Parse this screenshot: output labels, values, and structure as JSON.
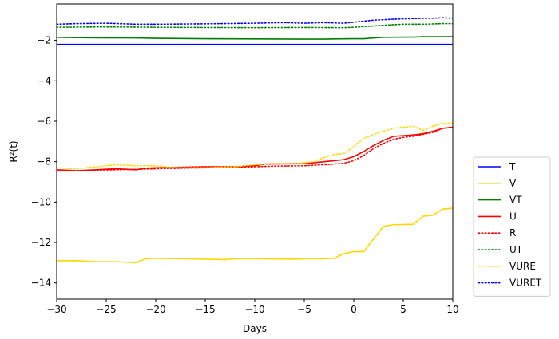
{
  "chart_data": {
    "type": "line",
    "xlabel": "Days",
    "ylabel": "R²(t)",
    "xlim": [
      -30,
      10
    ],
    "ylim": [
      -14.8,
      -0.2
    ],
    "x_ticks": [
      -30,
      -25,
      -20,
      -15,
      -10,
      -5,
      0,
      5,
      10
    ],
    "y_ticks": [
      -14,
      -12,
      -10,
      -8,
      -6,
      -4,
      -2
    ],
    "grid": false,
    "legend_position": "outside-right",
    "series": [
      {
        "name": "T",
        "color": "#0000ff",
        "style": "solid",
        "x": [
          -30,
          10
        ],
        "y": [
          -2.2,
          -2.2
        ]
      },
      {
        "name": "V",
        "color": "#ffd700",
        "style": "solid",
        "x": [
          -30,
          -28,
          -26,
          -24,
          -22,
          -21,
          -20,
          -17,
          -15,
          -13,
          -12,
          -10,
          -6,
          -5,
          -4,
          -3,
          -2,
          -1,
          0,
          1,
          3,
          4,
          6,
          7,
          8,
          9,
          10
        ],
        "y": [
          -12.9,
          -12.9,
          -12.95,
          -12.95,
          -13.0,
          -12.8,
          -12.78,
          -12.8,
          -12.82,
          -12.85,
          -12.8,
          -12.8,
          -12.82,
          -12.8,
          -12.8,
          -12.8,
          -12.78,
          -12.55,
          -12.45,
          -12.45,
          -11.2,
          -11.12,
          -11.1,
          -10.7,
          -10.65,
          -10.35,
          -10.3
        ]
      },
      {
        "name": "VT",
        "color": "#008000",
        "style": "solid",
        "x": [
          -30,
          -27,
          -22,
          -20,
          -15,
          -10,
          -5,
          -3,
          -2,
          0,
          1,
          2,
          3,
          5,
          6,
          7,
          9,
          10
        ],
        "y": [
          -1.85,
          -1.87,
          -1.88,
          -1.9,
          -1.92,
          -1.93,
          -1.94,
          -1.94,
          -1.93,
          -1.92,
          -1.92,
          -1.88,
          -1.85,
          -1.84,
          -1.84,
          -1.82,
          -1.82,
          -1.82
        ]
      },
      {
        "name": "U",
        "color": "#ff0000",
        "style": "solid",
        "x": [
          -30,
          -28,
          -26,
          -24,
          -22,
          -21,
          -20,
          -15,
          -12,
          -10,
          -9,
          -6,
          -5,
          -4,
          -3,
          -2,
          -1,
          0,
          1,
          2,
          3,
          4,
          6,
          7,
          8,
          9,
          10
        ],
        "y": [
          -8.4,
          -8.45,
          -8.4,
          -8.35,
          -8.4,
          -8.32,
          -8.3,
          -8.25,
          -8.25,
          -8.2,
          -8.12,
          -8.1,
          -8.1,
          -8.05,
          -8.0,
          -7.95,
          -7.9,
          -7.75,
          -7.5,
          -7.2,
          -6.95,
          -6.75,
          -6.68,
          -6.62,
          -6.5,
          -6.35,
          -6.3
        ]
      },
      {
        "name": "R",
        "color": "#ff0000",
        "style": "dotted",
        "x": [
          -30,
          -28,
          -26,
          -24,
          -22,
          -20,
          -15,
          -12,
          -10,
          -8,
          -5,
          -3,
          -1,
          0,
          1,
          2,
          3,
          4,
          5,
          6,
          7,
          8,
          9,
          10
        ],
        "y": [
          -8.45,
          -8.45,
          -8.42,
          -8.4,
          -8.38,
          -8.35,
          -8.3,
          -8.28,
          -8.25,
          -8.22,
          -8.2,
          -8.15,
          -8.08,
          -7.95,
          -7.7,
          -7.35,
          -7.1,
          -6.9,
          -6.8,
          -6.75,
          -6.65,
          -6.55,
          -6.35,
          -6.3
        ]
      },
      {
        "name": "UT",
        "color": "#008000",
        "style": "dotted",
        "x": [
          -30,
          -25,
          -20,
          -15,
          -10,
          -5,
          -1,
          0,
          1,
          3,
          5,
          7,
          9,
          10
        ],
        "y": [
          -1.35,
          -1.33,
          -1.35,
          -1.36,
          -1.37,
          -1.36,
          -1.37,
          -1.35,
          -1.32,
          -1.25,
          -1.2,
          -1.2,
          -1.17,
          -1.17
        ]
      },
      {
        "name": "VURE",
        "color": "#ffd700",
        "style": "dotted",
        "x": [
          -30,
          -28,
          -26,
          -24,
          -22,
          -20,
          -18,
          -15,
          -12,
          -10,
          -8,
          -6,
          -4,
          -3,
          -2,
          -1,
          0,
          1,
          2,
          3,
          4,
          5,
          6,
          7,
          8,
          9,
          10
        ],
        "y": [
          -8.3,
          -8.35,
          -8.25,
          -8.15,
          -8.2,
          -8.2,
          -8.3,
          -8.3,
          -8.25,
          -8.15,
          -8.1,
          -8.1,
          -8.0,
          -7.8,
          -7.65,
          -7.6,
          -7.25,
          -6.85,
          -6.65,
          -6.5,
          -6.35,
          -6.3,
          -6.25,
          -6.45,
          -6.25,
          -6.1,
          -6.1
        ]
      },
      {
        "name": "VURET",
        "color": "#0000ff",
        "style": "dotted",
        "x": [
          -30,
          -28,
          -25,
          -22,
          -20,
          -15,
          -10,
          -7,
          -5,
          -3,
          -1,
          0,
          1,
          2,
          4,
          6,
          8,
          9,
          10
        ],
        "y": [
          -1.2,
          -1.17,
          -1.15,
          -1.2,
          -1.2,
          -1.18,
          -1.15,
          -1.12,
          -1.15,
          -1.12,
          -1.15,
          -1.1,
          -1.05,
          -1.0,
          -0.95,
          -0.92,
          -0.9,
          -0.88,
          -0.9
        ]
      }
    ]
  }
}
